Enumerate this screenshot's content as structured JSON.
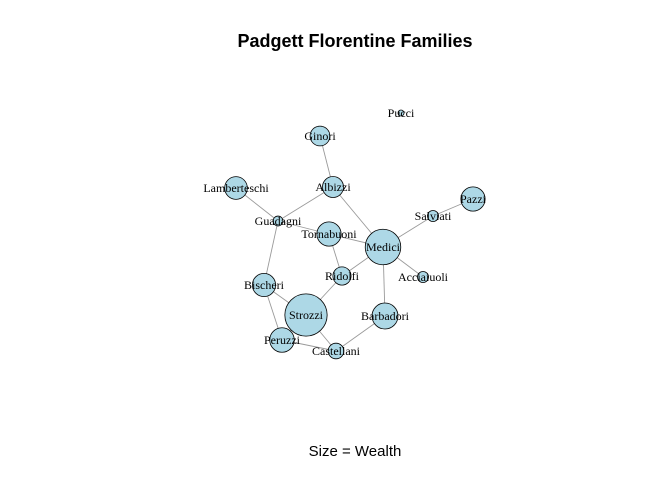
{
  "title": "Padgett Florentine Families",
  "subtitle": "Size = Wealth",
  "colors": {
    "node_fill": "#add8e6",
    "node_stroke": "#000000",
    "edge": "#9a9a9a"
  },
  "nodes": [
    {
      "id": "Acciaiuoli",
      "label": "Acciaiuoli",
      "wealth": 10
    },
    {
      "id": "Albizzi",
      "label": "Albizzi",
      "wealth": 36
    },
    {
      "id": "Barbadori",
      "label": "Barbadori",
      "wealth": 55
    },
    {
      "id": "Bischeri",
      "label": "Bischeri",
      "wealth": 44
    },
    {
      "id": "Castellani",
      "label": "Castellani",
      "wealth": 20
    },
    {
      "id": "Ginori",
      "label": "Ginori",
      "wealth": 32
    },
    {
      "id": "Guadagni",
      "label": "Guadagni",
      "wealth": 8
    },
    {
      "id": "Lamberteschi",
      "label": "Lamberteschi",
      "wealth": 42
    },
    {
      "id": "Medici",
      "label": "Medici",
      "wealth": 103
    },
    {
      "id": "Pazzi",
      "label": "Pazzi",
      "wealth": 48
    },
    {
      "id": "Peruzzi",
      "label": "Peruzzi",
      "wealth": 49
    },
    {
      "id": "Pucci",
      "label": "Pucci",
      "wealth": 3
    },
    {
      "id": "Ridolfi",
      "label": "Ridolfi",
      "wealth": 27
    },
    {
      "id": "Salviati",
      "label": "Salviati",
      "wealth": 10
    },
    {
      "id": "Strozzi",
      "label": "Strozzi",
      "wealth": 146
    },
    {
      "id": "Tornabuoni",
      "label": "Tornabuoni",
      "wealth": 48
    }
  ],
  "edges": [
    [
      "Acciaiuoli",
      "Medici"
    ],
    [
      "Albizzi",
      "Ginori"
    ],
    [
      "Albizzi",
      "Guadagni"
    ],
    [
      "Albizzi",
      "Medici"
    ],
    [
      "Barbadori",
      "Castellani"
    ],
    [
      "Barbadori",
      "Medici"
    ],
    [
      "Bischeri",
      "Guadagni"
    ],
    [
      "Bischeri",
      "Peruzzi"
    ],
    [
      "Bischeri",
      "Strozzi"
    ],
    [
      "Castellani",
      "Peruzzi"
    ],
    [
      "Castellani",
      "Strozzi"
    ],
    [
      "Guadagni",
      "Lamberteschi"
    ],
    [
      "Guadagni",
      "Tornabuoni"
    ],
    [
      "Medici",
      "Ridolfi"
    ],
    [
      "Medici",
      "Salviati"
    ],
    [
      "Medici",
      "Tornabuoni"
    ],
    [
      "Pazzi",
      "Salviati"
    ],
    [
      "Peruzzi",
      "Strozzi"
    ],
    [
      "Ridolfi",
      "Strozzi"
    ],
    [
      "Ridolfi",
      "Tornabuoni"
    ]
  ]
}
